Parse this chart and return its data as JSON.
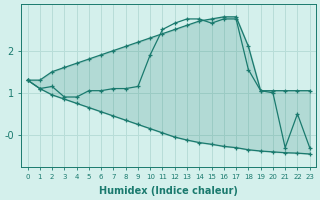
{
  "x": [
    0,
    1,
    2,
    3,
    4,
    5,
    6,
    7,
    8,
    9,
    10,
    11,
    12,
    13,
    14,
    15,
    16,
    17,
    18,
    19,
    20,
    21,
    22,
    23
  ],
  "y_upper": [
    1.3,
    1.3,
    1.5,
    1.6,
    1.7,
    1.8,
    1.9,
    2.0,
    2.1,
    2.2,
    2.3,
    2.4,
    2.5,
    2.6,
    2.7,
    2.75,
    2.8,
    2.8,
    2.1,
    1.05,
    1.05,
    1.05,
    1.05,
    1.05
  ],
  "y_lower": [
    1.3,
    1.1,
    0.95,
    0.85,
    0.75,
    0.65,
    0.55,
    0.45,
    0.35,
    0.25,
    0.15,
    0.05,
    -0.05,
    -0.12,
    -0.18,
    -0.22,
    -0.27,
    -0.3,
    -0.35,
    -0.38,
    -0.4,
    -0.42,
    -0.43,
    -0.45
  ],
  "y_vals": [
    1.3,
    1.1,
    1.15,
    0.9,
    0.9,
    1.05,
    1.05,
    1.1,
    1.1,
    1.15,
    1.9,
    2.5,
    2.65,
    2.75,
    2.75,
    2.65,
    2.75,
    2.75,
    1.55,
    1.05,
    1.0,
    -0.3,
    0.5,
    -0.3
  ],
  "color": "#1a7a6e",
  "bg_color": "#d4f0ec",
  "grid_color": "#b8ddd8",
  "xlabel": "Humidex (Indice chaleur)",
  "ylim": [
    -0.75,
    3.1
  ],
  "xlim": [
    -0.5,
    23.5
  ],
  "ytick_vals": [
    0,
    1,
    2
  ],
  "ytick_labels": [
    "-0",
    "1",
    "2"
  ],
  "xticks": [
    0,
    1,
    2,
    3,
    4,
    5,
    6,
    7,
    8,
    9,
    10,
    11,
    12,
    13,
    14,
    15,
    16,
    17,
    18,
    19,
    20,
    21,
    22,
    23
  ]
}
